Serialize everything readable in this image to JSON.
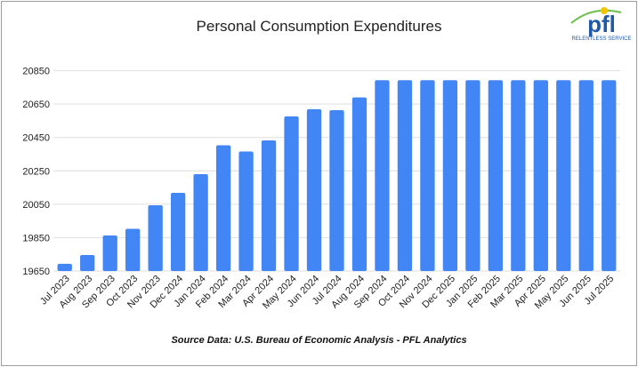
{
  "logo": {
    "text": "pfl",
    "tagline": "RELENTLESS SERVICE"
  },
  "chart_data": {
    "type": "bar",
    "title": "Personal Consumption Expenditures",
    "xlabel": "",
    "ylabel": "",
    "source": "Source Data: U.S. Bureau of Economic Analysis - PFL Analytics",
    "ylim": [
      19650,
      20850
    ],
    "yticks": [
      19650,
      19850,
      20050,
      20250,
      20450,
      20650,
      20850
    ],
    "grid": true,
    "legend": "none",
    "bar_color": "#4285f4",
    "categories": [
      "Jul 2023",
      "Aug 2023",
      "Sep 2023",
      "Oct 2023",
      "Nov 2023",
      "Dec 2024",
      "Jan 2024",
      "Feb 2024",
      "Mar 2024",
      "Apr 2024",
      "May 2024",
      "Jun 2024",
      "Jul 2024",
      "Aug 2024",
      "Sep 2024",
      "Oct 2024",
      "Nov 2024",
      "Dec 2025",
      "Jan 2025",
      "Feb 2025",
      "Mar 2025",
      "Apr 2025",
      "May 2025",
      "Jun 2025",
      "Jul 2025"
    ],
    "values": [
      19693,
      19746,
      19863,
      19903,
      20044,
      20118,
      20230,
      20403,
      20366,
      20432,
      20576,
      20619,
      20613,
      20690,
      20793,
      20793,
      20793,
      20793,
      20793,
      20793,
      20793,
      20793,
      20793,
      20793,
      20793
    ]
  }
}
